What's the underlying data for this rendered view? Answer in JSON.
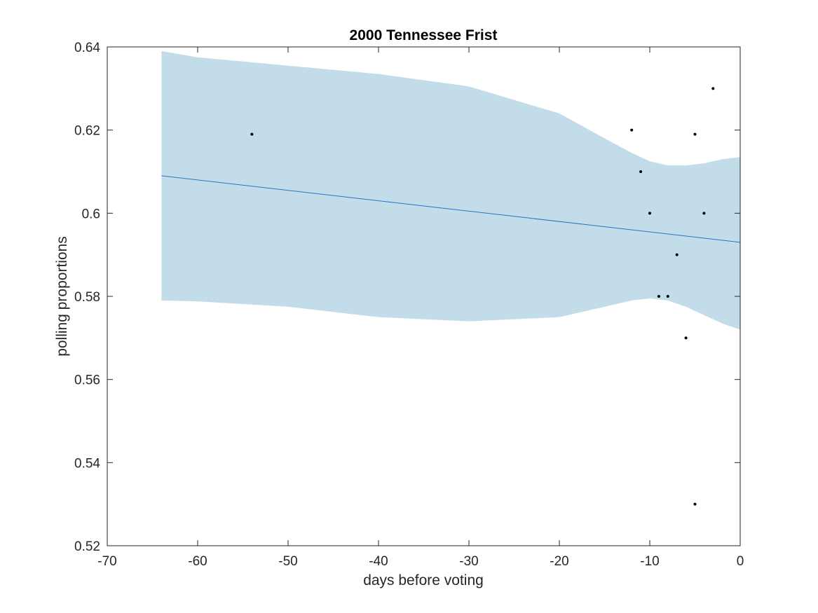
{
  "chart_data": {
    "type": "line",
    "title": "2000 Tennessee Frist",
    "xlabel": "days before voting",
    "ylabel": "polling proportions",
    "xlim": [
      -70,
      0
    ],
    "ylim": [
      0.52,
      0.64
    ],
    "x_ticks": [
      -70,
      -60,
      -50,
      -40,
      -30,
      -20,
      -10,
      0
    ],
    "x_tick_labels": [
      "-70",
      "-60",
      "-50",
      "-40",
      "-30",
      "-20",
      "-10",
      "0"
    ],
    "y_ticks": [
      0.52,
      0.54,
      0.56,
      0.58,
      0.6,
      0.62,
      0.64
    ],
    "y_tick_labels": [
      "0.52",
      "0.54",
      "0.56",
      "0.58",
      "0.6",
      "0.62",
      "0.64"
    ],
    "grid": false,
    "colors": {
      "band": "#c2dcea",
      "line": "#2a73c1",
      "points": "#000000",
      "axes": "#262626"
    },
    "trend_line": {
      "x": [
        -64,
        0
      ],
      "y": [
        0.609,
        0.593
      ]
    },
    "confidence_band": {
      "x": [
        -64,
        -60,
        -50,
        -40,
        -30,
        -20,
        -15,
        -12,
        -10,
        -8,
        -6,
        -4,
        -2,
        0
      ],
      "upper": [
        0.639,
        0.6375,
        0.6355,
        0.6335,
        0.6305,
        0.624,
        0.618,
        0.6145,
        0.6125,
        0.6115,
        0.6115,
        0.612,
        0.613,
        0.6135
      ],
      "lower": [
        0.579,
        0.5788,
        0.5775,
        0.575,
        0.574,
        0.575,
        0.5775,
        0.579,
        0.5795,
        0.579,
        0.5775,
        0.5755,
        0.5735,
        0.572
      ]
    },
    "points": [
      {
        "x": -54,
        "y": 0.619
      },
      {
        "x": -12,
        "y": 0.62
      },
      {
        "x": -11,
        "y": 0.61
      },
      {
        "x": -10,
        "y": 0.6
      },
      {
        "x": -9,
        "y": 0.58
      },
      {
        "x": -8,
        "y": 0.58
      },
      {
        "x": -7,
        "y": 0.59
      },
      {
        "x": -6,
        "y": 0.57
      },
      {
        "x": -5,
        "y": 0.619
      },
      {
        "x": -5,
        "y": 0.53
      },
      {
        "x": -4,
        "y": 0.6
      },
      {
        "x": -3,
        "y": 0.63
      }
    ]
  }
}
